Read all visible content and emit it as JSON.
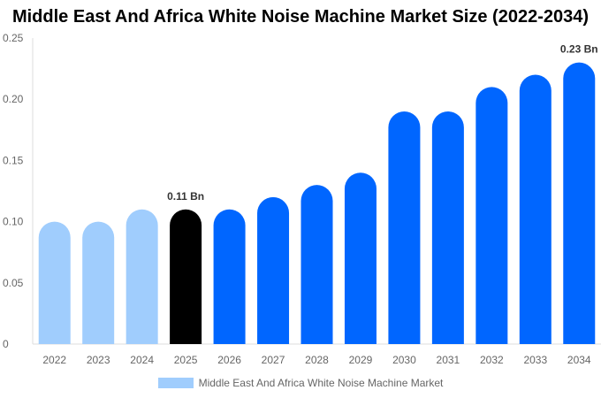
{
  "chart_data": {
    "type": "bar",
    "title": "Middle East And Africa White Noise Machine Market Size (2022-2034)",
    "categories": [
      "2022",
      "2023",
      "2024",
      "2025",
      "2026",
      "2027",
      "2028",
      "2029",
      "2030",
      "2031",
      "2032",
      "2033",
      "2034"
    ],
    "series": [
      {
        "name": "Middle East And Africa White Noise Machine Market",
        "values": [
          0.1,
          0.1,
          0.11,
          0.11,
          0.11,
          0.12,
          0.13,
          0.14,
          0.19,
          0.19,
          0.21,
          0.22,
          0.23
        ]
      }
    ],
    "bar_colors": [
      "#a0cdfd",
      "#a0cdfd",
      "#a0cdfd",
      "#000000",
      "#0066ff",
      "#0066ff",
      "#0066ff",
      "#0066ff",
      "#0066ff",
      "#0066ff",
      "#0066ff",
      "#0066ff",
      "#0066ff"
    ],
    "legend_color": "#a0cdfd",
    "data_labels": {
      "2025": "0.11 Bn",
      "2034": "0.23 Bn"
    },
    "ylim": [
      0,
      0.25
    ],
    "yticks": [
      "0",
      "0.05",
      "0.10",
      "0.15",
      "0.20",
      "0.25"
    ],
    "grid": false,
    "legend_position": "bottom"
  }
}
